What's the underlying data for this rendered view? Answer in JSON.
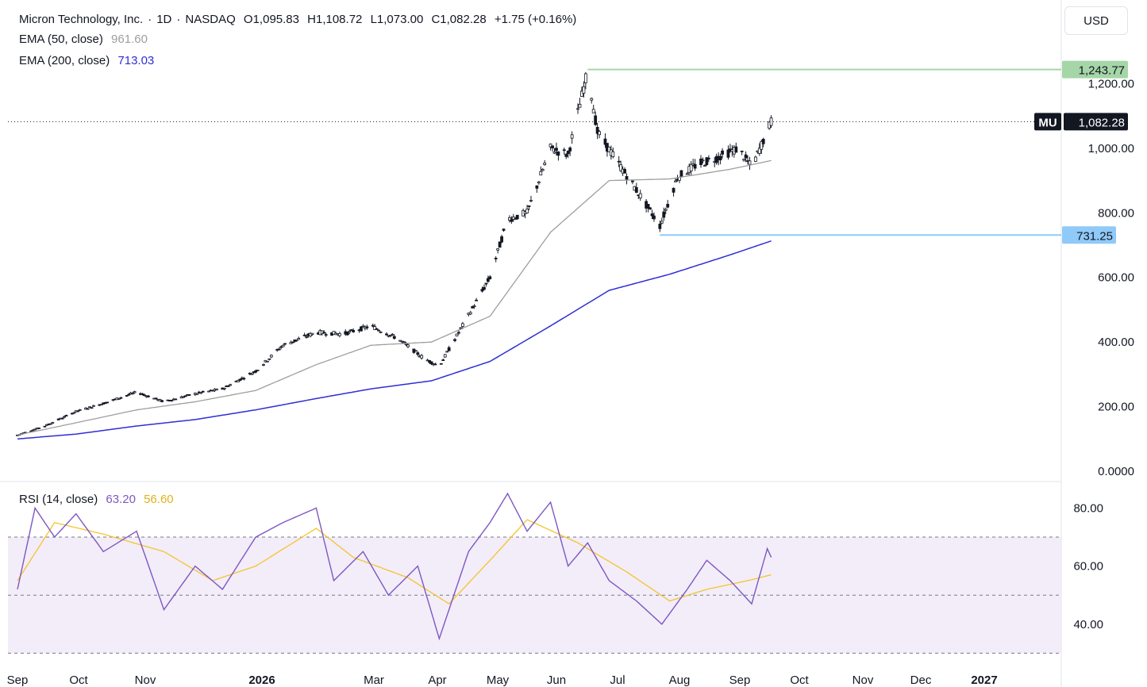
{
  "header": {
    "symbol_name": "Micron Technology, Inc.",
    "interval": "1D",
    "exchange": "NASDAQ",
    "ohlc": {
      "open": "O1,095.83",
      "high": "H1,108.72",
      "low": "L1,073.00",
      "close": "C1,082.28",
      "change": "+1.75 (+0.16%)"
    },
    "currency_button": "USD"
  },
  "indicators": {
    "ema50": {
      "label": "EMA (50, close)",
      "value": "961.60",
      "color": "#9e9e9e"
    },
    "ema200": {
      "label": "EMA (200, close)",
      "value": "713.03",
      "color": "#2e2ed4"
    },
    "rsi": {
      "label": "RSI (14, close)",
      "value": "63.20",
      "ma_value": "56.60",
      "color": "#7e57c2",
      "ma_color": "#f5c42c"
    }
  },
  "price_tags": {
    "high": {
      "value": "1,243.77",
      "color": "#a5d6a7"
    },
    "last": {
      "ticker": "MU",
      "value": "1,082.28"
    },
    "low": {
      "value": "731.25",
      "color": "#90caf9"
    }
  },
  "chart_data": {
    "type": "candlestick",
    "price_axis": {
      "ticks": [
        "0.0000",
        "200.00",
        "400.00",
        "600.00",
        "800.00",
        "1,000.00",
        "1,200.00"
      ],
      "ylim": [
        0,
        1300
      ]
    },
    "rsi_axis": {
      "ticks": [
        "40.00",
        "60.00",
        "80.00"
      ],
      "bands": [
        30,
        50,
        70
      ]
    },
    "time_axis": {
      "labels": [
        "Sep",
        "Oct",
        "Nov",
        "2026",
        "Mar",
        "Apr",
        "May",
        "Jun",
        "Jul",
        "Aug",
        "Sep",
        "Oct",
        "Nov",
        "Dec",
        "2027"
      ]
    },
    "price_anchors": [
      [
        "2025-09-01",
        112
      ],
      [
        "2025-09-15",
        140
      ],
      [
        "2025-10-01",
        185
      ],
      [
        "2025-10-15",
        210
      ],
      [
        "2025-11-01",
        245
      ],
      [
        "2025-11-15",
        215
      ],
      [
        "2025-12-01",
        240
      ],
      [
        "2025-12-15",
        255
      ],
      [
        "2026-01-01",
        310
      ],
      [
        "2026-01-15",
        390
      ],
      [
        "2026-02-01",
        430
      ],
      [
        "2026-02-15",
        425
      ],
      [
        "2026-03-01",
        450
      ],
      [
        "2026-03-15",
        410
      ],
      [
        "2026-03-28",
        350
      ],
      [
        "2026-04-05",
        325
      ],
      [
        "2026-04-15",
        430
      ],
      [
        "2026-05-01",
        600
      ],
      [
        "2026-05-10",
        780
      ],
      [
        "2026-05-20",
        800
      ],
      [
        "2026-06-01",
        1000
      ],
      [
        "2026-06-10",
        980
      ],
      [
        "2026-06-20",
        1240
      ],
      [
        "2026-06-25",
        1050
      ],
      [
        "2026-07-05",
        960
      ],
      [
        "2026-07-15",
        870
      ],
      [
        "2026-07-27",
        760
      ],
      [
        "2026-08-05",
        910
      ],
      [
        "2026-08-15",
        950
      ],
      [
        "2026-08-25",
        970
      ],
      [
        "2026-09-05",
        1000
      ],
      [
        "2026-09-12",
        940
      ],
      [
        "2026-09-22",
        1082
      ]
    ],
    "ema50_anchors": [
      [
        "2025-09-01",
        112
      ],
      [
        "2025-10-01",
        150
      ],
      [
        "2025-11-01",
        190
      ],
      [
        "2025-12-01",
        215
      ],
      [
        "2026-01-01",
        250
      ],
      [
        "2026-02-01",
        330
      ],
      [
        "2026-03-01",
        390
      ],
      [
        "2026-04-01",
        400
      ],
      [
        "2026-05-01",
        480
      ],
      [
        "2026-06-01",
        740
      ],
      [
        "2026-07-01",
        900
      ],
      [
        "2026-08-01",
        905
      ],
      [
        "2026-09-01",
        935
      ],
      [
        "2026-09-22",
        962
      ]
    ],
    "ema200_anchors": [
      [
        "2025-09-01",
        100
      ],
      [
        "2025-10-01",
        115
      ],
      [
        "2025-11-01",
        140
      ],
      [
        "2025-12-01",
        160
      ],
      [
        "2026-01-01",
        190
      ],
      [
        "2026-02-01",
        225
      ],
      [
        "2026-03-01",
        255
      ],
      [
        "2026-04-01",
        280
      ],
      [
        "2026-05-01",
        340
      ],
      [
        "2026-06-01",
        450
      ],
      [
        "2026-07-01",
        560
      ],
      [
        "2026-08-01",
        610
      ],
      [
        "2026-09-01",
        670
      ],
      [
        "2026-09-22",
        713
      ]
    ],
    "rsi_anchors": [
      [
        "2025-09-01",
        52
      ],
      [
        "2025-09-10",
        80
      ],
      [
        "2025-09-20",
        70
      ],
      [
        "2025-10-01",
        78
      ],
      [
        "2025-10-15",
        65
      ],
      [
        "2025-11-01",
        72
      ],
      [
        "2025-11-15",
        45
      ],
      [
        "2025-12-01",
        60
      ],
      [
        "2025-12-15",
        52
      ],
      [
        "2026-01-01",
        70
      ],
      [
        "2026-01-15",
        75
      ],
      [
        "2026-02-01",
        80
      ],
      [
        "2026-02-10",
        55
      ],
      [
        "2026-02-25",
        65
      ],
      [
        "2026-03-10",
        50
      ],
      [
        "2026-03-25",
        60
      ],
      [
        "2026-04-05",
        35
      ],
      [
        "2026-04-20",
        65
      ],
      [
        "2026-05-01",
        75
      ],
      [
        "2026-05-10",
        85
      ],
      [
        "2026-05-20",
        72
      ],
      [
        "2026-06-01",
        82
      ],
      [
        "2026-06-10",
        60
      ],
      [
        "2026-06-20",
        68
      ],
      [
        "2026-07-01",
        55
      ],
      [
        "2026-07-15",
        48
      ],
      [
        "2026-07-28",
        40
      ],
      [
        "2026-08-10",
        52
      ],
      [
        "2026-08-20",
        62
      ],
      [
        "2026-09-01",
        55
      ],
      [
        "2026-09-12",
        47
      ],
      [
        "2026-09-20",
        66
      ],
      [
        "2026-09-22",
        63
      ]
    ],
    "rsi_ma_anchors": [
      [
        "2025-09-01",
        55
      ],
      [
        "2025-09-20",
        75
      ],
      [
        "2025-10-15",
        71
      ],
      [
        "2025-11-15",
        65
      ],
      [
        "2025-12-10",
        55
      ],
      [
        "2026-01-01",
        60
      ],
      [
        "2026-02-01",
        73
      ],
      [
        "2026-02-20",
        63
      ],
      [
        "2026-03-20",
        56
      ],
      [
        "2026-04-10",
        47
      ],
      [
        "2026-05-01",
        62
      ],
      [
        "2026-05-20",
        76
      ],
      [
        "2026-06-15",
        68
      ],
      [
        "2026-07-10",
        58
      ],
      [
        "2026-08-01",
        48
      ],
      [
        "2026-08-20",
        52
      ],
      [
        "2026-09-10",
        55
      ],
      [
        "2026-09-22",
        57
      ]
    ]
  }
}
